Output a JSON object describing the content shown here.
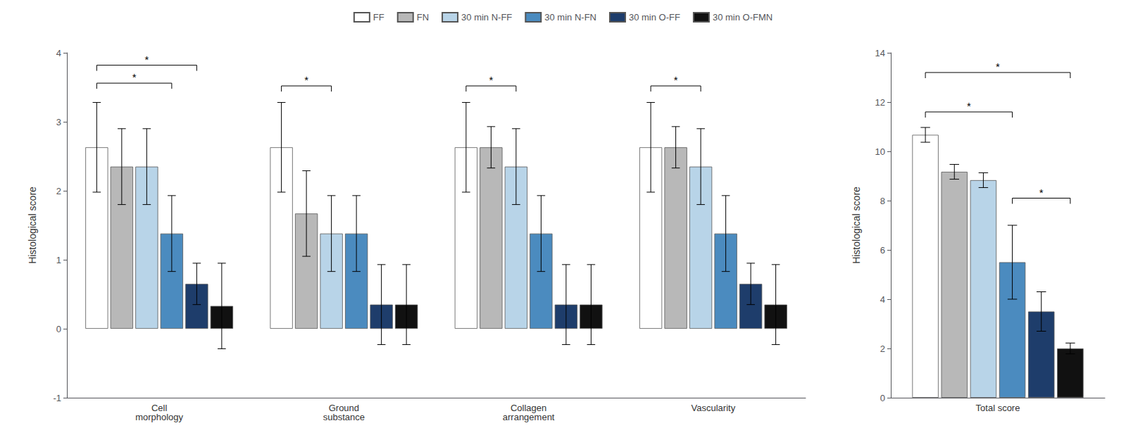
{
  "chart_data": [
    {
      "type": "bar",
      "ylabel": "Histological score",
      "categories": [
        "Cell\nmorphology",
        "Ground\nsubstance",
        "Collagen\narrangement",
        "Vascularity"
      ],
      "series": [
        {
          "name": "FF",
          "color": "#ffffff",
          "values": [
            2.63,
            2.63,
            2.63,
            2.63
          ],
          "errors": [
            0.65,
            0.65,
            0.65,
            0.65
          ]
        },
        {
          "name": "FN",
          "color": "#b8b8b8",
          "values": [
            2.35,
            1.67,
            2.63,
            2.63
          ],
          "errors": [
            0.55,
            0.62,
            0.3,
            0.3
          ]
        },
        {
          "name": "30 min N-FF",
          "color": "#b8d4e8",
          "values": [
            2.35,
            1.38,
            2.35,
            2.35
          ],
          "errors": [
            0.55,
            0.55,
            0.55,
            0.55
          ]
        },
        {
          "name": "30 min N-FN",
          "color": "#4b8bbf",
          "values": [
            1.38,
            1.38,
            1.38,
            1.38
          ],
          "errors": [
            0.55,
            0.55,
            0.55,
            0.55
          ]
        },
        {
          "name": "30 min O-FF",
          "color": "#1e3d6b",
          "values": [
            0.65,
            0.35,
            0.35,
            0.65
          ],
          "errors": [
            0.3,
            0.58,
            0.58,
            0.3
          ]
        },
        {
          "name": "30 min O-FMN",
          "color": "#111111",
          "values": [
            0.33,
            0.35,
            0.35,
            0.35
          ],
          "errors": [
            0.62,
            0.58,
            0.58,
            0.58
          ]
        }
      ],
      "ylim": [
        -1,
        4
      ],
      "yticks": [
        -1,
        0,
        1,
        2,
        3,
        4
      ],
      "grid": false,
      "legend": "top",
      "annotations": [
        {
          "text": "*",
          "category": "Cell\nmorphology",
          "from": "FF",
          "to": "30 min O-FF",
          "y": 3.82
        },
        {
          "text": "*",
          "category": "Cell\nmorphology",
          "from": "FF",
          "to": "30 min N-FN",
          "y": 3.56
        },
        {
          "text": "*",
          "category": "Ground\nsubstance",
          "from": "FF",
          "to": "30 min N-FF",
          "y": 3.52
        },
        {
          "text": "*",
          "category": "Collagen\narrangement",
          "from": "FF",
          "to": "30 min N-FF",
          "y": 3.52
        },
        {
          "text": "*",
          "category": "Vascularity",
          "from": "FF",
          "to": "30 min N-FF",
          "y": 3.52
        }
      ]
    },
    {
      "type": "bar",
      "ylabel": "Histological score",
      "categories": [
        "Total score"
      ],
      "series": [
        {
          "name": "FF",
          "color": "#ffffff",
          "values": [
            10.67
          ],
          "errors": [
            0.3
          ]
        },
        {
          "name": "FN",
          "color": "#b8b8b8",
          "values": [
            9.17
          ],
          "errors": [
            0.3
          ]
        },
        {
          "name": "30 min N-FF",
          "color": "#b8d4e8",
          "values": [
            8.83
          ],
          "errors": [
            0.3
          ]
        },
        {
          "name": "30 min N-FN",
          "color": "#4b8bbf",
          "values": [
            5.5
          ],
          "errors": [
            1.5
          ]
        },
        {
          "name": "30 min O-FF",
          "color": "#1e3d6b",
          "values": [
            3.5
          ],
          "errors": [
            0.8
          ]
        },
        {
          "name": "30 min O-FMN",
          "color": "#111111",
          "values": [
            2.0
          ],
          "errors": [
            0.22
          ]
        }
      ],
      "ylim": [
        0,
        14
      ],
      "yticks": [
        0,
        2,
        4,
        6,
        8,
        10,
        12,
        14
      ],
      "grid": false,
      "annotations": [
        {
          "text": "*",
          "category": "Total score",
          "from": "FF",
          "to": "30 min N-FN",
          "y": 11.6
        },
        {
          "text": "*",
          "category": "Total score",
          "from": "FF",
          "to": "30 min O-FMN",
          "y": 13.2
        },
        {
          "text": "*",
          "category": "Total score",
          "from": "30 min N-FN",
          "to": "30 min O-FMN",
          "y": 8.1
        }
      ]
    }
  ]
}
